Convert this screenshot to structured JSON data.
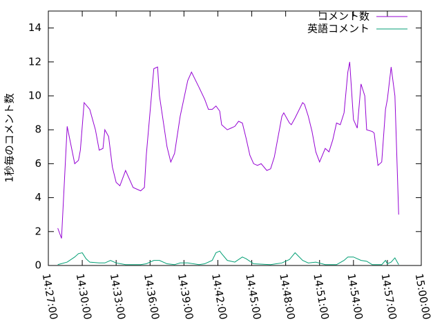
{
  "chart_data": {
    "type": "line",
    "ylabel": "1秒毎のコメント数",
    "xlim": [
      "14:27:00",
      "15:00:00"
    ],
    "xticks": [
      "14:27:00",
      "14:30:00",
      "14:33:00",
      "14:36:00",
      "14:39:00",
      "14:42:00",
      "14:45:00",
      "14:48:00",
      "14:51:00",
      "14:54:00",
      "14:57:00",
      "15:00:00"
    ],
    "ylim": [
      0,
      15
    ],
    "yticks": [
      0,
      2,
      4,
      6,
      8,
      10,
      12,
      14
    ],
    "legend": "top-right",
    "series": [
      {
        "name": "コメント数",
        "color": "#9400d3",
        "x": [
          "14:27:50",
          "14:28:10",
          "14:28:40",
          "14:29:20",
          "14:29:40",
          "14:29:50",
          "14:30:10",
          "14:30:40",
          "14:31:10",
          "14:31:30",
          "14:31:50",
          "14:32:00",
          "14:32:20",
          "14:32:40",
          "14:33:00",
          "14:33:20",
          "14:33:50",
          "14:34:30",
          "14:35:10",
          "14:35:30",
          "14:35:40",
          "14:36:20",
          "14:36:40",
          "14:36:50",
          "14:37:30",
          "14:37:50",
          "14:38:10",
          "14:38:40",
          "14:39:20",
          "14:39:40",
          "14:40:20",
          "14:40:50",
          "14:41:10",
          "14:41:30",
          "14:41:50",
          "14:42:10",
          "14:42:20",
          "14:42:50",
          "14:43:10",
          "14:43:30",
          "14:43:50",
          "14:44:10",
          "14:44:30",
          "14:44:50",
          "14:45:10",
          "14:45:30",
          "14:45:50",
          "14:46:20",
          "14:46:40",
          "14:47:00",
          "14:47:40",
          "14:47:50",
          "14:48:20",
          "14:48:30",
          "14:48:50",
          "14:49:30",
          "14:49:40",
          "14:50:00",
          "14:50:20",
          "14:50:40",
          "14:51:00",
          "14:51:30",
          "14:51:50",
          "14:52:10",
          "14:52:30",
          "14:52:50",
          "14:53:10",
          "14:53:30",
          "14:53:40",
          "14:54:00",
          "14:54:20",
          "14:54:40",
          "14:55:00",
          "14:55:10",
          "14:55:40",
          "14:55:50",
          "14:56:10",
          "14:56:30",
          "14:56:50",
          "14:57:00",
          "14:57:20",
          "14:57:40",
          "14:58:00"
        ],
        "values": [
          2.2,
          1.6,
          8.2,
          6.0,
          6.2,
          6.8,
          9.6,
          9.2,
          8.0,
          6.8,
          6.9,
          8.0,
          7.6,
          5.8,
          4.9,
          4.7,
          5.6,
          4.6,
          4.4,
          4.6,
          6.5,
          11.6,
          11.7,
          10.0,
          7.0,
          6.1,
          6.6,
          8.8,
          10.9,
          11.4,
          10.5,
          9.8,
          9.2,
          9.2,
          9.4,
          9.1,
          8.3,
          8.0,
          8.1,
          8.2,
          8.5,
          8.4,
          7.5,
          6.5,
          6.0,
          5.9,
          6.0,
          5.6,
          5.7,
          6.4,
          8.8,
          9.0,
          8.4,
          8.3,
          8.7,
          9.6,
          9.5,
          8.8,
          7.9,
          6.7,
          6.1,
          6.9,
          6.7,
          7.4,
          8.4,
          8.3,
          9.0,
          11.4,
          12.0,
          8.6,
          8.1,
          10.7,
          10.0,
          8.0,
          7.9,
          7.8,
          5.9,
          6.1,
          9.2,
          9.8,
          11.7,
          10.0,
          3.0
        ]
      },
      {
        "name": "英語コメント",
        "color": "#009e73",
        "x": [
          "14:27:50",
          "14:28:40",
          "14:29:20",
          "14:29:40",
          "14:30:00",
          "14:30:20",
          "14:30:40",
          "14:31:30",
          "14:32:00",
          "14:32:30",
          "14:33:00",
          "14:33:50",
          "14:35:10",
          "14:35:40",
          "14:36:20",
          "14:36:50",
          "14:37:30",
          "14:38:10",
          "14:38:40",
          "14:39:20",
          "14:40:20",
          "14:40:50",
          "14:41:30",
          "14:41:50",
          "14:42:10",
          "14:42:20",
          "14:42:50",
          "14:43:30",
          "14:44:10",
          "14:44:30",
          "14:45:10",
          "14:46:40",
          "14:47:40",
          "14:48:20",
          "14:48:50",
          "14:49:30",
          "14:50:00",
          "14:50:40",
          "14:51:30",
          "14:52:30",
          "14:53:10",
          "14:53:30",
          "14:54:00",
          "14:54:40",
          "14:55:10",
          "14:55:40",
          "14:56:30",
          "14:56:50",
          "14:57:00",
          "14:57:20",
          "14:57:40",
          "14:58:00"
        ],
        "values": [
          0.05,
          0.2,
          0.5,
          0.7,
          0.75,
          0.4,
          0.2,
          0.15,
          0.15,
          0.3,
          0.15,
          0.05,
          0.05,
          0.1,
          0.3,
          0.3,
          0.1,
          0.05,
          0.15,
          0.15,
          0.05,
          0.1,
          0.3,
          0.75,
          0.85,
          0.7,
          0.3,
          0.2,
          0.5,
          0.4,
          0.1,
          0.05,
          0.15,
          0.35,
          0.75,
          0.3,
          0.15,
          0.2,
          0.05,
          0.05,
          0.3,
          0.5,
          0.5,
          0.3,
          0.25,
          0.05,
          0.05,
          0.3,
          0.1,
          0.2,
          0.45,
          0.05
        ]
      }
    ]
  }
}
